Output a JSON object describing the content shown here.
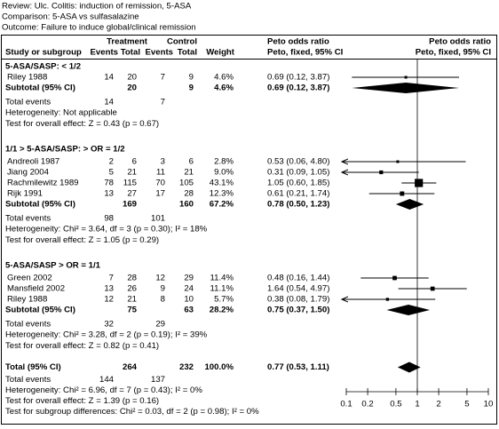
{
  "header": {
    "review": "Review: Ulc. Colitis: induction of remission, 5-ASA",
    "comparison": "Comparison: 5-ASA vs sulfasalazine",
    "outcome": "Outcome: Failure to induce global/clinical remission"
  },
  "columns": {
    "treatment": "Treatment",
    "control": "Control",
    "study": "Study or subgroup",
    "t_events": "Events",
    "t_total": "Total",
    "c_events": "Events",
    "c_total": "Total",
    "weight": "Weight",
    "or_title": "Peto odds ratio",
    "or_sub": "Peto, fixed, 95% CI",
    "plot_title": "Peto odds ratio",
    "plot_sub": "Peto, fixed, 95% CI"
  },
  "forest": {
    "log": true,
    "xlim": [
      0.1,
      10
    ],
    "xticks": [
      0.1,
      0.2,
      0.5,
      1,
      2,
      5,
      10
    ]
  },
  "subgroups": [
    {
      "title": "5-ASA/SASP: < 1/2",
      "studies": [
        {
          "name": "Riley 1988",
          "t_events": 14,
          "t_total": 20,
          "c_events": 7,
          "c_total": 9,
          "weight": 4.6,
          "weight_label": "4.6%",
          "ci_label": "0.69 (0.12, 3.87)",
          "or": 0.69,
          "lo": 0.12,
          "hi": 3.87
        }
      ],
      "subtotal": {
        "label": "Subtotal (95% CI)",
        "t_total": 20,
        "c_total": 9,
        "weight_label": "4.6%",
        "ci_label": "0.69 (0.12, 3.87)",
        "or": 0.69,
        "lo": 0.12,
        "hi": 3.87
      },
      "events": {
        "label": "Total events",
        "t_events": 14,
        "c_events": 7
      },
      "heterogeneity": "Heterogeneity: Not applicable",
      "overall": "Test for overall effect: Z = 0.43 (p = 0.67)"
    },
    {
      "title": "1/1 > 5-ASA/SASP: > OR = 1/2",
      "studies": [
        {
          "name": "Andreoli 1987",
          "t_events": 2,
          "t_total": 6,
          "c_events": 3,
          "c_total": 6,
          "weight": 2.8,
          "weight_label": "2.8%",
          "ci_label": "0.53 (0.06, 4.80)",
          "or": 0.53,
          "lo": 0.06,
          "hi": 4.8
        },
        {
          "name": "Jiang 2004",
          "t_events": 5,
          "t_total": 21,
          "c_events": 11,
          "c_total": 21,
          "weight": 9.0,
          "weight_label": "9.0%",
          "ci_label": "0.31 (0.09, 1.05)",
          "or": 0.31,
          "lo": 0.09,
          "hi": 1.05
        },
        {
          "name": "Rachmilewitz 1989",
          "t_events": 78,
          "t_total": 115,
          "c_events": 70,
          "c_total": 105,
          "weight": 43.1,
          "weight_label": "43.1%",
          "ci_label": "1.05 (0.60, 1.85)",
          "or": 1.05,
          "lo": 0.6,
          "hi": 1.85
        },
        {
          "name": "Rijk 1991",
          "t_events": 13,
          "t_total": 27,
          "c_events": 17,
          "c_total": 28,
          "weight": 12.3,
          "weight_label": "12.3%",
          "ci_label": "0.61 (0.21, 1.74)",
          "or": 0.61,
          "lo": 0.21,
          "hi": 1.74
        }
      ],
      "subtotal": {
        "label": "Subtotal (95% CI)",
        "t_total": 169,
        "c_total": 160,
        "weight_label": "67.2%",
        "ci_label": "0.78 (0.50, 1.23)",
        "or": 0.78,
        "lo": 0.5,
        "hi": 1.23
      },
      "events": {
        "label": "Total events",
        "t_events": 98,
        "c_events": 101
      },
      "heterogeneity": "Heterogeneity: Chi² = 3.64, df = 3 (p = 0.30); I² = 18%",
      "overall": "Test for overall effect: Z = 1.05 (p = 0.29)"
    },
    {
      "title": "5-ASA/SASP > OR = 1/1",
      "studies": [
        {
          "name": "Green 2002",
          "t_events": 7,
          "t_total": 28,
          "c_events": 12,
          "c_total": 29,
          "weight": 11.4,
          "weight_label": "11.4%",
          "ci_label": "0.48 (0.16, 1.44)",
          "or": 0.48,
          "lo": 0.16,
          "hi": 1.44
        },
        {
          "name": "Mansfield 2002",
          "t_events": 13,
          "t_total": 26,
          "c_events": 9,
          "c_total": 24,
          "weight": 11.1,
          "weight_label": "11.1%",
          "ci_label": "1.64 (0.54, 4.97)",
          "or": 1.64,
          "lo": 0.54,
          "hi": 4.97
        },
        {
          "name": "Riley 1988",
          "t_events": 12,
          "t_total": 21,
          "c_events": 8,
          "c_total": 10,
          "weight": 5.7,
          "weight_label": "5.7%",
          "ci_label": "0.38 (0.08, 1.79)",
          "or": 0.38,
          "lo": 0.08,
          "hi": 1.79
        }
      ],
      "subtotal": {
        "label": "Subtotal (95% CI)",
        "t_total": 75,
        "c_total": 63,
        "weight_label": "28.2%",
        "ci_label": "0.75 (0.37, 1.50)",
        "or": 0.75,
        "lo": 0.37,
        "hi": 1.5
      },
      "events": {
        "label": "Total events",
        "t_events": 32,
        "c_events": 29
      },
      "heterogeneity": "Heterogeneity: Chi² = 3.28, df = 2 (p = 0.19); I² = 39%",
      "overall": "Test for overall effect: Z = 0.82 (p = 0.41)"
    }
  ],
  "total": {
    "label": "Total (95% CI)",
    "t_total": 264,
    "c_total": 232,
    "weight_label": "100.0%",
    "ci_label": "0.77 (0.53, 1.11)",
    "or": 0.77,
    "lo": 0.53,
    "hi": 1.11,
    "events": {
      "label": "Total events",
      "t_events": 144,
      "c_events": 137
    },
    "heterogeneity": "Heterogeneity: Chi² = 6.96, df = 7 (p = 0.43); I² = 0%",
    "overall": "Test for overall effect: Z = 1.39 (p = 0.16)",
    "subgroup_diff": "Test for subgroup differences: Chi² = 0.03, df = 2 (p = 0.98); I² = 0%"
  }
}
